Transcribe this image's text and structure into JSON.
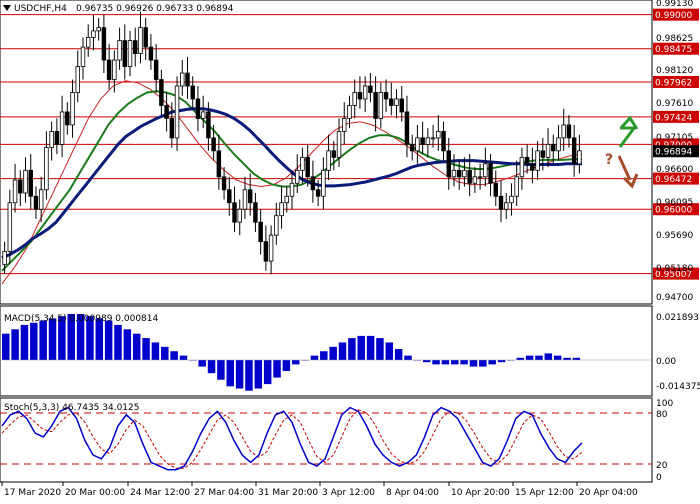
{
  "header": {
    "symbol": "USDCHF,H4",
    "ohlc": "0.96735 0.96926 0.96733 0.96894"
  },
  "price_axis": {
    "ticks": [
      "0.99130",
      "0.98625",
      "0.98120",
      "0.97610",
      "0.97105",
      "0.96600",
      "0.96095",
      "0.95690",
      "0.95180",
      "0.94700"
    ],
    "levels": [
      {
        "label": "0.99000",
        "value": 0.99,
        "color": "#cc0000"
      },
      {
        "label": "0.98475",
        "value": 0.98475,
        "color": "#cc0000"
      },
      {
        "label": "0.97962",
        "value": 0.97962,
        "color": "#cc0000"
      },
      {
        "label": "0.97424",
        "value": 0.97424,
        "color": "#cc0000"
      },
      {
        "label": "0.97000",
        "value": 0.97,
        "color": "#cc0000"
      },
      {
        "label": "0.96472",
        "value": 0.96472,
        "color": "#cc0000"
      },
      {
        "label": "0.96000",
        "value": 0.96,
        "color": "#cc0000"
      },
      {
        "label": "0.95007",
        "value": 0.95007,
        "color": "#cc0000"
      }
    ],
    "current": {
      "label": "0.96894",
      "value": 0.96894,
      "color": "#000000"
    }
  },
  "macd": {
    "label": "MACD(5,34,5) 0.000989 0.000814",
    "ticks": [
      "0.021893",
      "0.00",
      "-0.014375"
    ]
  },
  "stoch": {
    "label": "Stoch(5,3,3) 46.7435 34.0125",
    "ticks": [
      "100",
      "80",
      "20",
      "0"
    ]
  },
  "time_axis": [
    "17 Mar 2020",
    "20 Mar 00:00",
    "24 Mar 12:00",
    "27 Mar 04:00",
    "31 Mar 20:00",
    "3 Apr 12:00",
    "8 Apr 04:00",
    "10 Apr 20:00",
    "15 Apr 12:00",
    "20 Apr 04:00"
  ],
  "annotation": {
    "text": "?"
  },
  "colors": {
    "bull": "#006600",
    "bear": "#aa3300",
    "candle": "#000000",
    "ma_blue": "#0a1a7a",
    "ma_green": "#1a7a1a",
    "ma_red": "#cc2222",
    "macd": "#0000cc",
    "signal": "#cc0000",
    "stoch_main": "#0000cc",
    "stoch_signal": "#cc0000",
    "level": "#cc0000"
  },
  "chart_data": {
    "type": "candlestick",
    "closes": [
      0.9535,
      0.961,
      0.9645,
      0.9625,
      0.966,
      0.962,
      0.96,
      0.963,
      0.9695,
      0.972,
      0.97,
      0.975,
      0.973,
      0.978,
      0.982,
      0.985,
      0.9865,
      0.9875,
      0.988,
      0.983,
      0.98,
      0.983,
      0.986,
      0.982,
      0.986,
      0.984,
      0.988,
      0.985,
      0.983,
      0.98,
      0.976,
      0.974,
      0.971,
      0.979,
      0.981,
      0.979,
      0.977,
      0.974,
      0.975,
      0.971,
      0.969,
      0.965,
      0.963,
      0.961,
      0.958,
      0.96,
      0.963,
      0.961,
      0.958,
      0.955,
      0.952,
      0.956,
      0.959,
      0.961,
      0.962,
      0.964,
      0.966,
      0.968,
      0.965,
      0.963,
      0.962,
      0.966,
      0.969,
      0.968,
      0.972,
      0.974,
      0.976,
      0.978,
      0.977,
      0.979,
      0.978,
      0.974,
      0.978,
      0.977,
      0.976,
      0.977,
      0.975,
      0.97,
      0.969,
      0.971,
      0.97,
      0.971,
      0.971,
      0.972,
      0.969,
      0.965,
      0.966,
      0.965,
      0.966,
      0.964,
      0.965,
      0.965,
      0.967,
      0.964,
      0.962,
      0.96,
      0.961,
      0.962,
      0.965,
      0.968,
      0.967,
      0.966,
      0.969,
      0.968,
      0.97,
      0.969,
      0.971,
      0.973,
      0.971,
      0.967,
      0.969
    ],
    "ma_blue": [
      0.9525,
      0.953,
      0.9537,
      0.9545,
      0.9555,
      0.9562,
      0.957,
      0.958,
      0.9595,
      0.961,
      0.9625,
      0.964,
      0.9655,
      0.967,
      0.9685,
      0.97,
      0.9712,
      0.972,
      0.9728,
      0.9734,
      0.974,
      0.9745,
      0.975,
      0.9752,
      0.9754,
      0.9755,
      0.9755,
      0.9753,
      0.975,
      0.9746,
      0.974,
      0.9732,
      0.9722,
      0.971,
      0.9698,
      0.9685,
      0.9673,
      0.9662,
      0.9652,
      0.9645,
      0.964,
      0.9637,
      0.9636,
      0.9636,
      0.9637,
      0.9638,
      0.964,
      0.9642,
      0.9645,
      0.9648,
      0.9651,
      0.9655,
      0.966,
      0.9665,
      0.9668,
      0.967,
      0.9672,
      0.9673,
      0.9674,
      0.9675,
      0.9675,
      0.9675,
      0.9674,
      0.9673,
      0.9672,
      0.9671,
      0.967,
      0.967,
      0.9669,
      0.9669,
      0.9669,
      0.9669,
      0.9669,
      0.967,
      0.967,
      0.967
    ],
    "ma_green": [
      0.9505,
      0.952,
      0.9535,
      0.955,
      0.957,
      0.959,
      0.961,
      0.963,
      0.9655,
      0.968,
      0.9705,
      0.973,
      0.9748,
      0.9762,
      0.9772,
      0.978,
      0.9782,
      0.978,
      0.9775,
      0.9765,
      0.975,
      0.9735,
      0.972,
      0.9702,
      0.9685,
      0.967,
      0.9655,
      0.9645,
      0.9638,
      0.9635,
      0.9635,
      0.9638,
      0.9645,
      0.9655,
      0.9668,
      0.968,
      0.9692,
      0.9702,
      0.971,
      0.9714,
      0.9714,
      0.971,
      0.9702,
      0.969,
      0.9682,
      0.9676,
      0.9672,
      0.9668,
      0.9664,
      0.9662,
      0.9662,
      0.9664,
      0.9667,
      0.967,
      0.9673,
      0.9675,
      0.9676,
      0.9676,
      0.9676,
      0.9677,
      0.9677
    ],
    "ma_red": [
      0.9485,
      0.951,
      0.954,
      0.958,
      0.962,
      0.966,
      0.97,
      0.974,
      0.977,
      0.979,
      0.9798,
      0.9795,
      0.9785,
      0.977,
      0.975,
      0.9725,
      0.97,
      0.9678,
      0.966,
      0.9645,
      0.9638,
      0.9635,
      0.9638,
      0.9648,
      0.9665,
      0.9685,
      0.9705,
      0.9722,
      0.9732,
      0.9735,
      0.973,
      0.972,
      0.9708,
      0.9695,
      0.968,
      0.9665,
      0.9652,
      0.9642,
      0.9638,
      0.9638,
      0.9642,
      0.9648,
      0.9655,
      0.9663,
      0.967,
      0.9677,
      0.9682,
      0.9685
    ],
    "macd_hist": [
      0.012,
      0.014,
      0.016,
      0.017,
      0.018,
      0.019,
      0.02,
      0.021,
      0.021,
      0.02,
      0.019,
      0.018,
      0.016,
      0.014,
      0.012,
      0.01,
      0.008,
      0.006,
      0.004,
      0.002,
      0.0,
      -0.003,
      -0.006,
      -0.009,
      -0.012,
      -0.013,
      -0.014,
      -0.013,
      -0.011,
      -0.008,
      -0.005,
      -0.002,
      0.0,
      0.002,
      0.004,
      0.006,
      0.008,
      0.01,
      0.011,
      0.011,
      0.01,
      0.008,
      0.005,
      0.002,
      0.0,
      -0.001,
      -0.002,
      -0.002,
      -0.002,
      -0.002,
      -0.003,
      -0.003,
      -0.002,
      -0.001,
      0.0,
      0.001,
      0.002,
      0.002,
      0.003,
      0.002,
      0.001,
      0.001
    ],
    "stoch_main": [
      70,
      85,
      90,
      80,
      60,
      55,
      70,
      90,
      95,
      80,
      50,
      30,
      25,
      40,
      70,
      85,
      75,
      45,
      20,
      15,
      10,
      10,
      15,
      35,
      60,
      80,
      90,
      75,
      50,
      30,
      20,
      30,
      60,
      85,
      90,
      75,
      45,
      20,
      15,
      25,
      55,
      85,
      95,
      90,
      70,
      45,
      30,
      20,
      15,
      20,
      30,
      55,
      85,
      95,
      90,
      80,
      60,
      40,
      20,
      15,
      25,
      50,
      80,
      90,
      85,
      60,
      40,
      25,
      20,
      35,
      46.74
    ],
    "stoch_signal": [
      60,
      72,
      82,
      85,
      75,
      65,
      62,
      75,
      85,
      88,
      75,
      55,
      38,
      32,
      45,
      65,
      78,
      70,
      50,
      30,
      18,
      12,
      12,
      20,
      38,
      58,
      78,
      85,
      75,
      55,
      35,
      27,
      35,
      58,
      78,
      85,
      75,
      50,
      28,
      20,
      30,
      55,
      80,
      92,
      88,
      72,
      50,
      32,
      22,
      18,
      22,
      35,
      58,
      80,
      90,
      88,
      78,
      60,
      40,
      25,
      20,
      30,
      52,
      75,
      85,
      80,
      62,
      42,
      28,
      25,
      34.01
    ]
  }
}
